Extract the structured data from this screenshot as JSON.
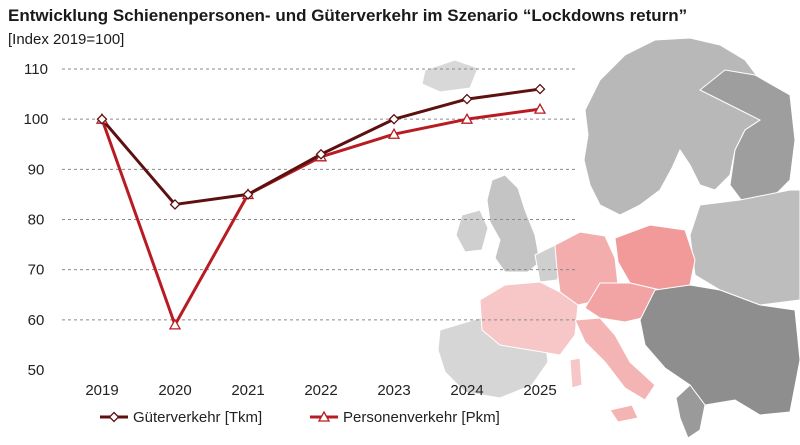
{
  "chart_data": {
    "type": "line",
    "title": "Entwicklung Schienenpersonen- und Güterverkehr im Szenario “Lockdowns return”",
    "subtitle": "[Index 2019=100]",
    "xlabel": "",
    "ylabel": "",
    "x": [
      "2019",
      "2020",
      "2021",
      "2022",
      "2023",
      "2024",
      "2025"
    ],
    "ylim": [
      50,
      110
    ],
    "yticks": [
      50,
      60,
      70,
      80,
      90,
      100,
      110
    ],
    "grid": true,
    "legend_position": "bottom",
    "series": [
      {
        "name": "Güterverkehr [Tkm]",
        "marker": "diamond",
        "color": "#5c1010",
        "values": [
          100,
          83,
          85,
          93,
          100,
          104,
          106
        ]
      },
      {
        "name": "Personenverkehr [Pkm]",
        "marker": "triangle",
        "color": "#b81c22",
        "values": [
          100,
          59,
          85,
          92.5,
          97,
          100,
          102
        ]
      }
    ]
  },
  "background": {
    "map": "europe-map",
    "highlight_color": "#f29a9a",
    "country_color": "#a8a8a8"
  }
}
